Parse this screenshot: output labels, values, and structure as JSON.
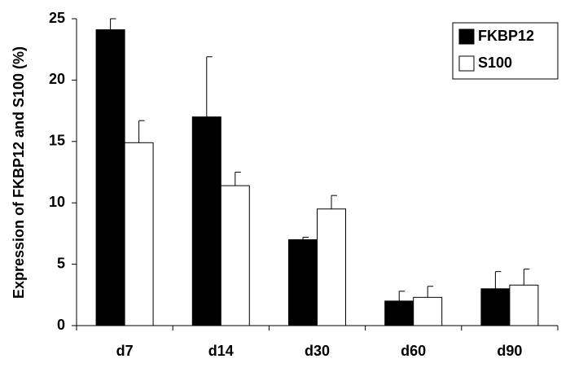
{
  "chart_data": {
    "type": "bar",
    "y_label": "Expression of FKBP12 and S100  (%)",
    "categories": [
      "d7",
      "d14",
      "d30",
      "d60",
      "d90"
    ],
    "series": [
      {
        "name": "FKBP12",
        "color": "#000000",
        "values": [
          24.1,
          17.0,
          7.0,
          2.0,
          3.0
        ],
        "errors": [
          0.9,
          4.9,
          0.2,
          0.8,
          1.4
        ]
      },
      {
        "name": "S100",
        "color": "#ffffff",
        "values": [
          14.9,
          11.4,
          9.5,
          2.3,
          3.3
        ],
        "errors": [
          1.8,
          1.1,
          1.1,
          0.9,
          1.3
        ]
      }
    ],
    "ylim": [
      0,
      25
    ],
    "yticks": [
      0,
      5,
      10,
      15,
      20,
      25
    ],
    "grid": false,
    "legend": "top-right"
  }
}
